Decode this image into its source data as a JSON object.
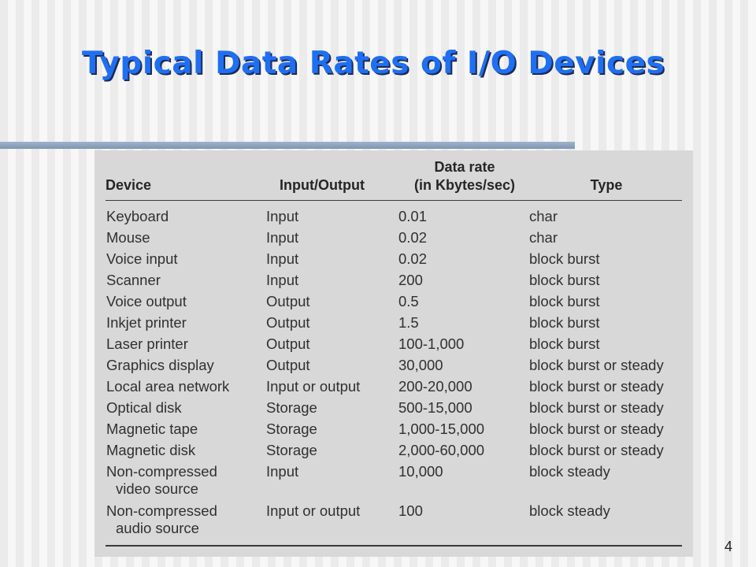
{
  "slide": {
    "title": "Typical Data Rates of I/O Devices",
    "page_number": "4"
  },
  "table": {
    "headers": {
      "device": "Device",
      "io": "Input/Output",
      "rate_line1": "Data rate",
      "rate_line2": "(in Kbytes/sec)",
      "type": "Type"
    },
    "rows": [
      {
        "device": "Keyboard",
        "device2": "",
        "io": "Input",
        "rate": "0.01",
        "type": "char"
      },
      {
        "device": "Mouse",
        "device2": "",
        "io": "Input",
        "rate": "0.02",
        "type": "char"
      },
      {
        "device": "Voice input",
        "device2": "",
        "io": "Input",
        "rate": "0.02",
        "type": "block burst"
      },
      {
        "device": "Scanner",
        "device2": "",
        "io": "Input",
        "rate": "200",
        "type": "block burst"
      },
      {
        "device": "Voice output",
        "device2": "",
        "io": "Output",
        "rate": "0.5",
        "type": "block burst"
      },
      {
        "device": "Inkjet printer",
        "device2": "",
        "io": "Output",
        "rate": "1.5",
        "type": "block burst"
      },
      {
        "device": "Laser printer",
        "device2": "",
        "io": "Output",
        "rate": "100-1,000",
        "type": "block burst"
      },
      {
        "device": "Graphics display",
        "device2": "",
        "io": "Output",
        "rate": "30,000",
        "type": "block burst or steady"
      },
      {
        "device": "Local area network",
        "device2": "",
        "io": "Input or output",
        "rate": "200-20,000",
        "type": "block burst or steady"
      },
      {
        "device": "Optical disk",
        "device2": "",
        "io": "Storage",
        "rate": "500-15,000",
        "type": "block burst or steady"
      },
      {
        "device": "Magnetic tape",
        "device2": "",
        "io": "Storage",
        "rate": "1,000-15,000",
        "type": "block burst or steady"
      },
      {
        "device": "Magnetic disk",
        "device2": "",
        "io": "Storage",
        "rate": "2,000-60,000",
        "type": "block burst or steady"
      },
      {
        "device": "Non-compressed",
        "device2": "video source",
        "io": "Input",
        "rate": "10,000",
        "type": "block steady"
      },
      {
        "device": "Non-compressed",
        "device2": "audio source",
        "io": "Input or output",
        "rate": "100",
        "type": "block steady"
      }
    ]
  }
}
